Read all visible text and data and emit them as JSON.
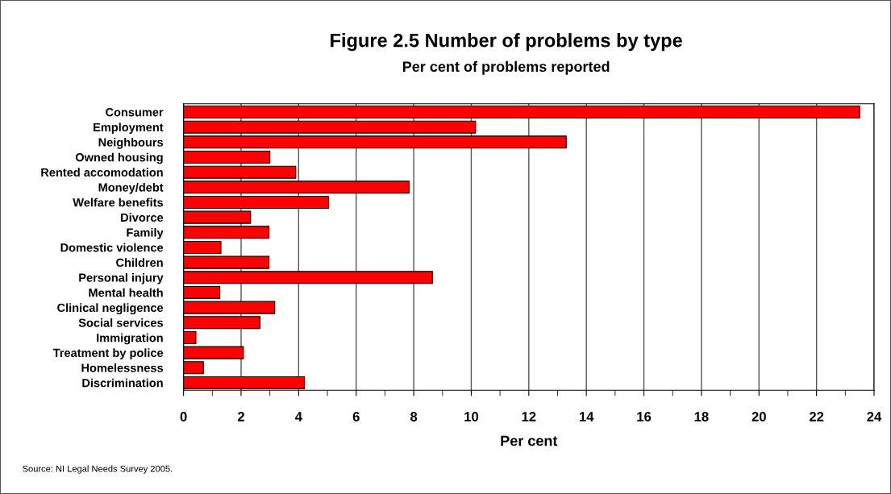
{
  "chart_data": {
    "type": "bar",
    "orientation": "horizontal",
    "title": "Figure 2.5 Number of problems by type",
    "subtitle": "Per cent of problems reported",
    "xlabel": "Per cent",
    "categories": [
      "Consumer",
      "Employment",
      "Neighbours",
      "Owned housing",
      "Rented accomodation",
      "Money/debt",
      "Welfare benefits",
      "Divorce",
      "Family",
      "Domestic violence",
      "Children",
      "Personal injury",
      "Mental health",
      "Clinical negligence",
      "Social services",
      "Immigration",
      "Treatment by police",
      "Homelessness",
      "Discrimination"
    ],
    "values": [
      23.5,
      10.15,
      13.3,
      3.0,
      3.9,
      7.84,
      5.04,
      2.33,
      2.97,
      1.3,
      2.97,
      8.65,
      1.26,
      3.17,
      2.66,
      0.43,
      2.08,
      0.69,
      4.2
    ],
    "color": "#ff0000",
    "xlim": [
      0,
      24
    ],
    "xticks": [
      0,
      2,
      4,
      6,
      8,
      10,
      12,
      14,
      16,
      18,
      20,
      22,
      24
    ],
    "grid": "x",
    "legend": false,
    "annotations": [
      "Source: NI Legal Needs Survey 2005."
    ]
  }
}
